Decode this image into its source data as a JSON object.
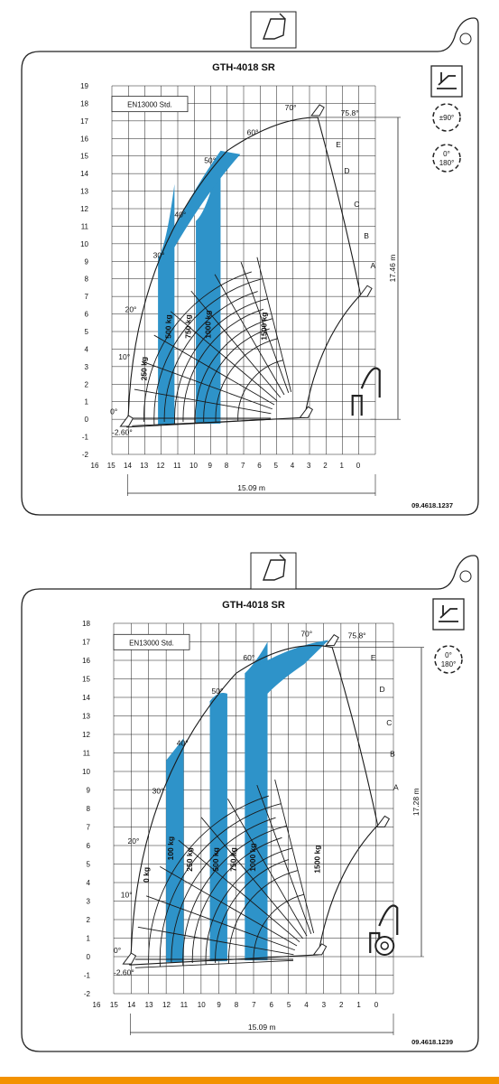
{
  "colors": {
    "zone_fill": "#2e93c9",
    "line": "#1a1a1a",
    "grid": "#1a1a1a",
    "accent_bar": "#f39200"
  },
  "charts": [
    {
      "title": "GTH-4018 SR",
      "standard": "EN13000 Std.",
      "code": "09.4618.1237",
      "height_label": "17.46 m",
      "reach_label": "15.09 m",
      "y_ticks": [
        "19",
        "18",
        "17",
        "16",
        "15",
        "14",
        "13",
        "12",
        "11",
        "10",
        "9",
        "8",
        "7",
        "6",
        "5",
        "4",
        "3",
        "2",
        "1",
        "0",
        "-1",
        "-2"
      ],
      "x_ticks": [
        "16",
        "15",
        "14",
        "13",
        "12",
        "11",
        "10",
        "9",
        "8",
        "7",
        "6",
        "5",
        "4",
        "3",
        "2",
        "1",
        "0"
      ],
      "angles": [
        "75.8°",
        "70°",
        "60°",
        "50°",
        "40°",
        "30°",
        "20°",
        "10°",
        "0°",
        "-2.60°"
      ],
      "extensions": [
        "E",
        "D",
        "C",
        "B",
        "A"
      ],
      "loads": [
        "250 kg",
        "500 kg",
        "750 kg",
        "1000 kg",
        "1500 kg"
      ],
      "side_icons": [
        "fork-chassis-icon",
        "rotation-90-icon",
        "rotation-180-icon"
      ],
      "side_icon_labels": [
        "±90°",
        "0°",
        "180°"
      ]
    },
    {
      "title": "GTH-4018 SR",
      "standard": "EN13000 Std.",
      "code": "09.4618.1239",
      "height_label": "17.28 m",
      "reach_label": "15.09 m",
      "y_ticks": [
        "18",
        "17",
        "16",
        "15",
        "14",
        "13",
        "12",
        "11",
        "10",
        "9",
        "8",
        "7",
        "6",
        "5",
        "4",
        "3",
        "2",
        "1",
        "0",
        "-1",
        "-2"
      ],
      "x_ticks": [
        "16",
        "15",
        "14",
        "13",
        "12",
        "11",
        "10",
        "9",
        "8",
        "7",
        "6",
        "5",
        "4",
        "3",
        "2",
        "1",
        "0"
      ],
      "angles": [
        "75.8°",
        "70°",
        "60°",
        "50°",
        "40°",
        "30°",
        "20°",
        "10°",
        "0°",
        "-2.60°"
      ],
      "extensions": [
        "E",
        "D",
        "C",
        "B",
        "A"
      ],
      "loads": [
        "0 kg",
        "100 kg",
        "250 kg",
        "500 kg",
        "750 kg",
        "1000 kg",
        "1500 kg"
      ],
      "side_icons": [
        "tyres-chassis-icon",
        "rotation-180-icon"
      ],
      "side_icon_labels": [
        "0°",
        "180°"
      ]
    }
  ]
}
